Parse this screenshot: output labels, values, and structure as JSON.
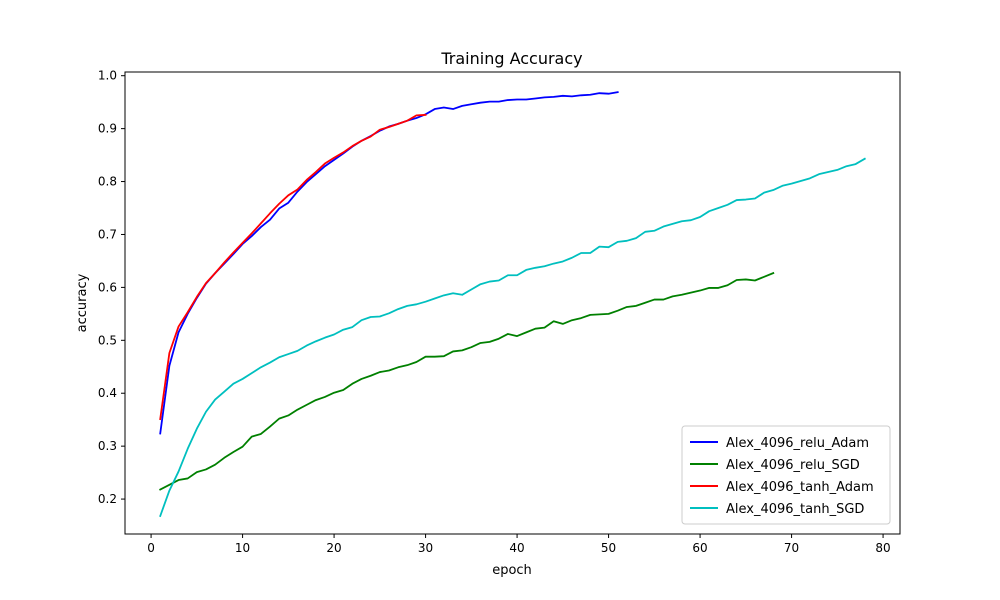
{
  "chart_data": {
    "type": "line",
    "title": "Training Accuracy",
    "xlabel": "epoch",
    "ylabel": "accuracy",
    "xlim": [
      -2.85,
      81.85
    ],
    "ylim": [
      0.134,
      1.007
    ],
    "xticks": [
      0,
      10,
      20,
      30,
      40,
      50,
      60,
      70,
      80
    ],
    "yticks": [
      0.2,
      0.3,
      0.4,
      0.5,
      0.6,
      0.7,
      0.8,
      0.9,
      1.0
    ],
    "xtick_labels": [
      "0",
      "10",
      "20",
      "30",
      "40",
      "50",
      "60",
      "70",
      "80"
    ],
    "ytick_labels": [
      "0.2",
      "0.3",
      "0.4",
      "0.5",
      "0.6",
      "0.7",
      "0.8",
      "0.9",
      "1.0"
    ],
    "grid": false,
    "legend_position": "lower-right",
    "series": [
      {
        "name": "Alex_4096_relu_Adam",
        "color": "#0000ff",
        "x": [
          1,
          2,
          3,
          4,
          5,
          6,
          7,
          8,
          9,
          10,
          11,
          12,
          13,
          14,
          15,
          16,
          17,
          18,
          19,
          20,
          21,
          22,
          23,
          24,
          25,
          26,
          27,
          28,
          29,
          30,
          31,
          32,
          33,
          34,
          35,
          36,
          37,
          38,
          39,
          40,
          41,
          42,
          43,
          44,
          45,
          46,
          47,
          48,
          49,
          50,
          51
        ],
        "y": [
          0.324,
          0.452,
          0.515,
          0.55,
          0.58,
          0.607,
          0.627,
          0.645,
          0.663,
          0.682,
          0.697,
          0.714,
          0.728,
          0.749,
          0.76,
          0.781,
          0.799,
          0.814,
          0.829,
          0.841,
          0.853,
          0.866,
          0.877,
          0.886,
          0.896,
          0.904,
          0.909,
          0.915,
          0.92,
          0.927,
          0.937,
          0.94,
          0.937,
          0.943,
          0.946,
          0.949,
          0.951,
          0.951,
          0.954,
          0.955,
          0.955,
          0.957,
          0.959,
          0.96,
          0.962,
          0.961,
          0.963,
          0.964,
          0.967,
          0.966,
          0.969
        ]
      },
      {
        "name": "Alex_4096_relu_SGD",
        "color": "#008000",
        "x": [
          1,
          2,
          3,
          4,
          5,
          6,
          7,
          8,
          9,
          10,
          11,
          12,
          13,
          14,
          15,
          16,
          17,
          18,
          19,
          20,
          21,
          22,
          23,
          24,
          25,
          26,
          27,
          28,
          29,
          30,
          31,
          32,
          33,
          34,
          35,
          36,
          37,
          38,
          39,
          40,
          41,
          42,
          43,
          44,
          45,
          46,
          47,
          48,
          49,
          50,
          51,
          52,
          53,
          54,
          55,
          56,
          57,
          58,
          59,
          60,
          61,
          62,
          63,
          64,
          65,
          66,
          67,
          68
        ],
        "y": [
          0.218,
          0.227,
          0.236,
          0.239,
          0.251,
          0.256,
          0.265,
          0.278,
          0.289,
          0.299,
          0.318,
          0.323,
          0.337,
          0.352,
          0.358,
          0.369,
          0.378,
          0.387,
          0.393,
          0.401,
          0.406,
          0.418,
          0.427,
          0.433,
          0.44,
          0.443,
          0.449,
          0.453,
          0.459,
          0.469,
          0.469,
          0.47,
          0.479,
          0.481,
          0.487,
          0.495,
          0.497,
          0.503,
          0.512,
          0.508,
          0.515,
          0.522,
          0.524,
          0.536,
          0.531,
          0.538,
          0.542,
          0.548,
          0.549,
          0.55,
          0.556,
          0.563,
          0.565,
          0.571,
          0.577,
          0.577,
          0.583,
          0.586,
          0.59,
          0.594,
          0.599,
          0.599,
          0.604,
          0.614,
          0.615,
          0.613,
          0.62,
          0.627
        ]
      },
      {
        "name": "Alex_4096_tanh_Adam",
        "color": "#ff0000",
        "x": [
          1,
          2,
          3,
          4,
          5,
          6,
          7,
          8,
          9,
          10,
          11,
          12,
          13,
          14,
          15,
          16,
          17,
          18,
          19,
          20,
          21,
          22,
          23,
          24,
          25,
          26,
          27,
          28,
          29,
          30
        ],
        "y": [
          0.351,
          0.476,
          0.526,
          0.553,
          0.582,
          0.608,
          0.627,
          0.647,
          0.666,
          0.684,
          0.702,
          0.721,
          0.74,
          0.758,
          0.774,
          0.785,
          0.803,
          0.818,
          0.834,
          0.845,
          0.855,
          0.867,
          0.877,
          0.885,
          0.898,
          0.903,
          0.909,
          0.915,
          0.925,
          0.926
        ]
      },
      {
        "name": "Alex_4096_tanh_SGD",
        "color": "#00bfbf",
        "x": [
          1,
          2,
          3,
          4,
          5,
          6,
          7,
          8,
          9,
          10,
          11,
          12,
          13,
          14,
          15,
          16,
          17,
          18,
          19,
          20,
          21,
          22,
          23,
          24,
          25,
          26,
          27,
          28,
          29,
          30,
          31,
          32,
          33,
          34,
          35,
          36,
          37,
          38,
          39,
          40,
          41,
          42,
          43,
          44,
          45,
          46,
          47,
          48,
          49,
          50,
          51,
          52,
          53,
          54,
          55,
          56,
          57,
          58,
          59,
          60,
          61,
          62,
          63,
          64,
          65,
          66,
          67,
          68,
          69,
          70,
          71,
          72,
          73,
          74,
          75,
          76,
          77,
          78
        ],
        "y": [
          0.168,
          0.216,
          0.252,
          0.295,
          0.333,
          0.365,
          0.388,
          0.403,
          0.418,
          0.427,
          0.438,
          0.449,
          0.458,
          0.468,
          0.474,
          0.48,
          0.49,
          0.498,
          0.505,
          0.511,
          0.52,
          0.525,
          0.538,
          0.544,
          0.545,
          0.551,
          0.559,
          0.565,
          0.568,
          0.573,
          0.579,
          0.585,
          0.589,
          0.586,
          0.596,
          0.606,
          0.611,
          0.613,
          0.623,
          0.623,
          0.633,
          0.637,
          0.64,
          0.645,
          0.649,
          0.656,
          0.665,
          0.665,
          0.677,
          0.676,
          0.686,
          0.688,
          0.693,
          0.705,
          0.707,
          0.715,
          0.72,
          0.725,
          0.727,
          0.733,
          0.744,
          0.75,
          0.756,
          0.765,
          0.766,
          0.768,
          0.779,
          0.784,
          0.792,
          0.796,
          0.801,
          0.806,
          0.814,
          0.818,
          0.822,
          0.829,
          0.833,
          0.843
        ]
      }
    ]
  }
}
